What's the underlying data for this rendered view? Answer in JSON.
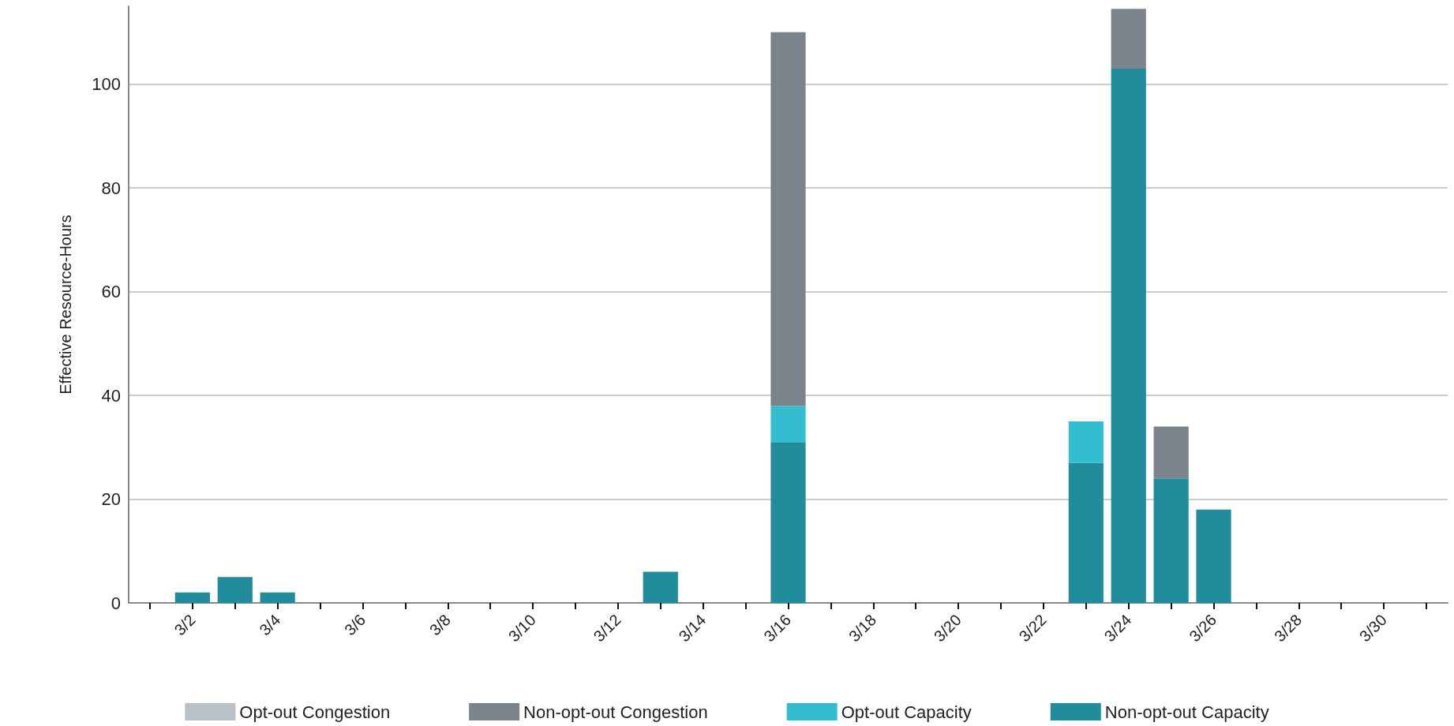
{
  "chart_data": {
    "type": "bar",
    "stacked": true,
    "ylabel": "Effective Resource-Hours",
    "categories": [
      null,
      "3/2",
      null,
      "3/4",
      null,
      "3/6",
      null,
      "3/8",
      null,
      "3/10",
      null,
      "3/12",
      null,
      "3/14",
      null,
      "3/16",
      null,
      "3/18",
      null,
      "3/20",
      null,
      "3/22",
      null,
      "3/24",
      null,
      "3/26",
      null,
      "3/28",
      null,
      "3/30",
      null
    ],
    "series": [
      {
        "name": "Non-opt-out Capacity",
        "color": "#208c9c",
        "values": [
          0,
          2,
          5,
          2,
          0,
          0,
          0,
          0,
          0,
          0,
          0,
          0,
          6,
          0,
          0,
          31,
          0,
          0,
          0,
          0,
          0,
          0,
          27,
          103,
          24,
          18,
          0,
          0,
          0,
          0,
          0
        ]
      },
      {
        "name": "Opt-out Capacity",
        "color": "#33bdd1",
        "values": [
          0,
          0,
          0,
          0,
          0,
          0,
          0,
          0,
          0,
          0,
          0,
          0,
          0,
          0,
          0,
          7,
          0,
          0,
          0,
          0,
          0,
          0,
          8,
          0,
          0,
          0,
          0,
          0,
          0,
          0,
          0
        ]
      },
      {
        "name": "Non-opt-out Congestion",
        "color": "#7b848d",
        "values": [
          0,
          0,
          0,
          0,
          0,
          0,
          0,
          0,
          0,
          0,
          0,
          0,
          0,
          0,
          0,
          72,
          0,
          0,
          0,
          0,
          0,
          0,
          0,
          11.5,
          10,
          0,
          0,
          0,
          0,
          0,
          0
        ]
      },
      {
        "name": "Opt-out Congestion",
        "color": "#b9c0c6",
        "values": [
          0,
          0,
          0,
          0,
          0,
          0,
          0,
          0,
          0,
          0,
          0,
          0,
          0,
          0,
          0,
          0,
          0,
          0,
          0,
          0,
          0,
          0,
          0,
          0,
          0,
          0,
          0,
          0,
          0,
          0,
          0
        ]
      }
    ],
    "ylim": [
      0,
      115
    ],
    "yticks": [
      0,
      20,
      40,
      60,
      80,
      100
    ],
    "grid": "y",
    "legend": "bottom"
  }
}
